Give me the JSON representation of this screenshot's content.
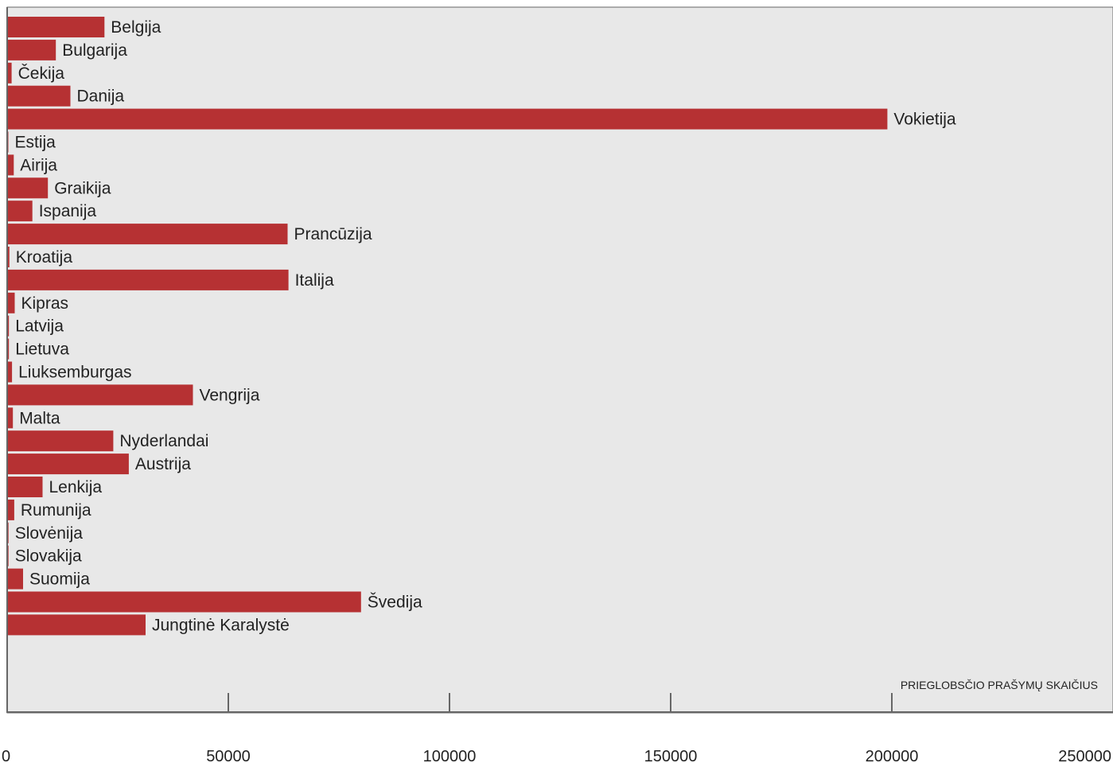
{
  "chart_data": {
    "type": "bar",
    "orientation": "horizontal",
    "categories": [
      "Belgija",
      "Bulgarija",
      "Čekija",
      "Danija",
      "Vokietija",
      "Estija",
      "Airija",
      "Graikija",
      "Ispanija",
      "Prancūzija",
      "Kroatija",
      "Italija",
      "Kipras",
      "Latvija",
      "Lietuva",
      "Liuksemburgas",
      "Vengrija",
      "Malta",
      "Nyderlandai",
      "Austrija",
      "Lenkija",
      "Rumunija",
      "Slovėnija",
      "Slovakija",
      "Suomija",
      "Švedija",
      "Jungtinė Karalystė"
    ],
    "values": [
      22000,
      11000,
      1000,
      14300,
      199000,
      200,
      1500,
      9200,
      5700,
      63400,
      500,
      63600,
      1700,
      400,
      400,
      1100,
      42000,
      1300,
      24000,
      27500,
      8000,
      1600,
      300,
      300,
      3600,
      80000,
      31300
    ],
    "xlabel": "PRIEGLOBSČIO PRAŠYMŲ SKAIČIUS",
    "xlim": [
      0,
      250000
    ],
    "xticks": [
      0,
      50000,
      100000,
      150000,
      200000,
      250000
    ],
    "xtick_labels": [
      "0",
      "50000",
      "100000",
      "150000",
      "200000",
      "250000"
    ],
    "grid": false,
    "colors": {
      "bar": "#b63133",
      "plot_background": "#e8e8e8",
      "axis": "#666666"
    }
  }
}
